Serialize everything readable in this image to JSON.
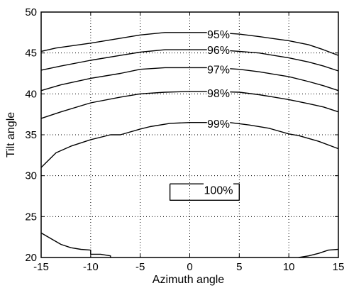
{
  "chart_data": {
    "type": "line",
    "title": "",
    "xlabel": "Azimuth angle",
    "ylabel": "Tilt angle",
    "xlim": [
      -15,
      15
    ],
    "ylim": [
      20,
      50
    ],
    "xticks": [
      -15,
      -10,
      -5,
      0,
      5,
      10,
      15
    ],
    "yticks": [
      20,
      25,
      30,
      35,
      40,
      45,
      50
    ],
    "grid": "dotted",
    "line_color": "#000000",
    "series": [
      {
        "name": "95%",
        "x": [
          -15,
          -13.5,
          -10,
          -7,
          -5,
          -2.5,
          0,
          2.5,
          5,
          7,
          10,
          12,
          13.5,
          15
        ],
        "y": [
          45.2,
          45.6,
          46.2,
          46.8,
          47.2,
          47.5,
          47.5,
          47.5,
          47.3,
          47.0,
          46.5,
          46.0,
          45.4,
          44.7
        ]
      },
      {
        "name": "96%",
        "x": [
          -15,
          -13,
          -10,
          -7,
          -5,
          -2.5,
          0,
          2.5,
          5,
          7,
          10,
          12,
          13.5,
          15
        ],
        "y": [
          42.9,
          43.4,
          44.1,
          44.7,
          45.1,
          45.4,
          45.4,
          45.4,
          45.2,
          45.0,
          44.4,
          43.9,
          43.4,
          42.8
        ]
      },
      {
        "name": "97%",
        "x": [
          -15,
          -13,
          -10,
          -7,
          -5,
          -2.5,
          0,
          2.5,
          5,
          7,
          10,
          12,
          13.5,
          15
        ],
        "y": [
          40.4,
          41.1,
          41.9,
          42.5,
          43.0,
          43.2,
          43.2,
          43.2,
          43.0,
          42.7,
          42.1,
          41.5,
          41.0,
          40.4
        ]
      },
      {
        "name": "98%",
        "x": [
          -15,
          -13,
          -10,
          -7,
          -5,
          -2.5,
          0,
          2.5,
          5,
          7,
          10,
          12,
          13.5,
          15
        ],
        "y": [
          37.0,
          37.8,
          38.9,
          39.6,
          40.0,
          40.2,
          40.3,
          40.3,
          40.2,
          39.9,
          39.3,
          38.8,
          38.4,
          37.8
        ]
      },
      {
        "name": "99%",
        "x": [
          -15,
          -13.5,
          -12,
          -10,
          -8,
          -7,
          -5,
          -4,
          -2,
          0,
          2,
          4,
          6,
          8,
          10,
          11,
          13,
          15
        ],
        "y": [
          31.0,
          32.8,
          33.6,
          34.4,
          35.0,
          35.0,
          35.7,
          36.0,
          36.4,
          36.5,
          36.5,
          36.5,
          36.2,
          35.8,
          35.1,
          34.9,
          34.2,
          33.3
        ]
      },
      {
        "name": "100%",
        "x": [
          -2,
          5,
          5,
          -2,
          -2
        ],
        "y": [
          29.0,
          29.0,
          27.0,
          27.0,
          29.0
        ]
      },
      {
        "name": "100%",
        "x": [
          -15,
          -14,
          -13,
          -12,
          -11,
          -10,
          -10,
          -9,
          -8,
          -8
        ],
        "y": [
          23.0,
          22.3,
          21.6,
          21.2,
          21.0,
          20.9,
          20.4,
          20.4,
          20.2,
          20.0
        ]
      },
      {
        "name": "100%",
        "x": [
          11,
          12,
          13,
          14,
          15
        ],
        "y": [
          20.0,
          20.2,
          20.5,
          20.9,
          21.0
        ]
      }
    ],
    "annotations": [
      {
        "text": "95%",
        "x": 2.9,
        "y": 47.3
      },
      {
        "text": "96%",
        "x": 2.9,
        "y": 45.4
      },
      {
        "text": "97%",
        "x": 2.9,
        "y": 43.0
      },
      {
        "text": "98%",
        "x": 2.9,
        "y": 40.1
      },
      {
        "text": "99%",
        "x": 2.9,
        "y": 36.4
      },
      {
        "text": "100%",
        "x": 2.9,
        "y": 28.3
      }
    ]
  }
}
